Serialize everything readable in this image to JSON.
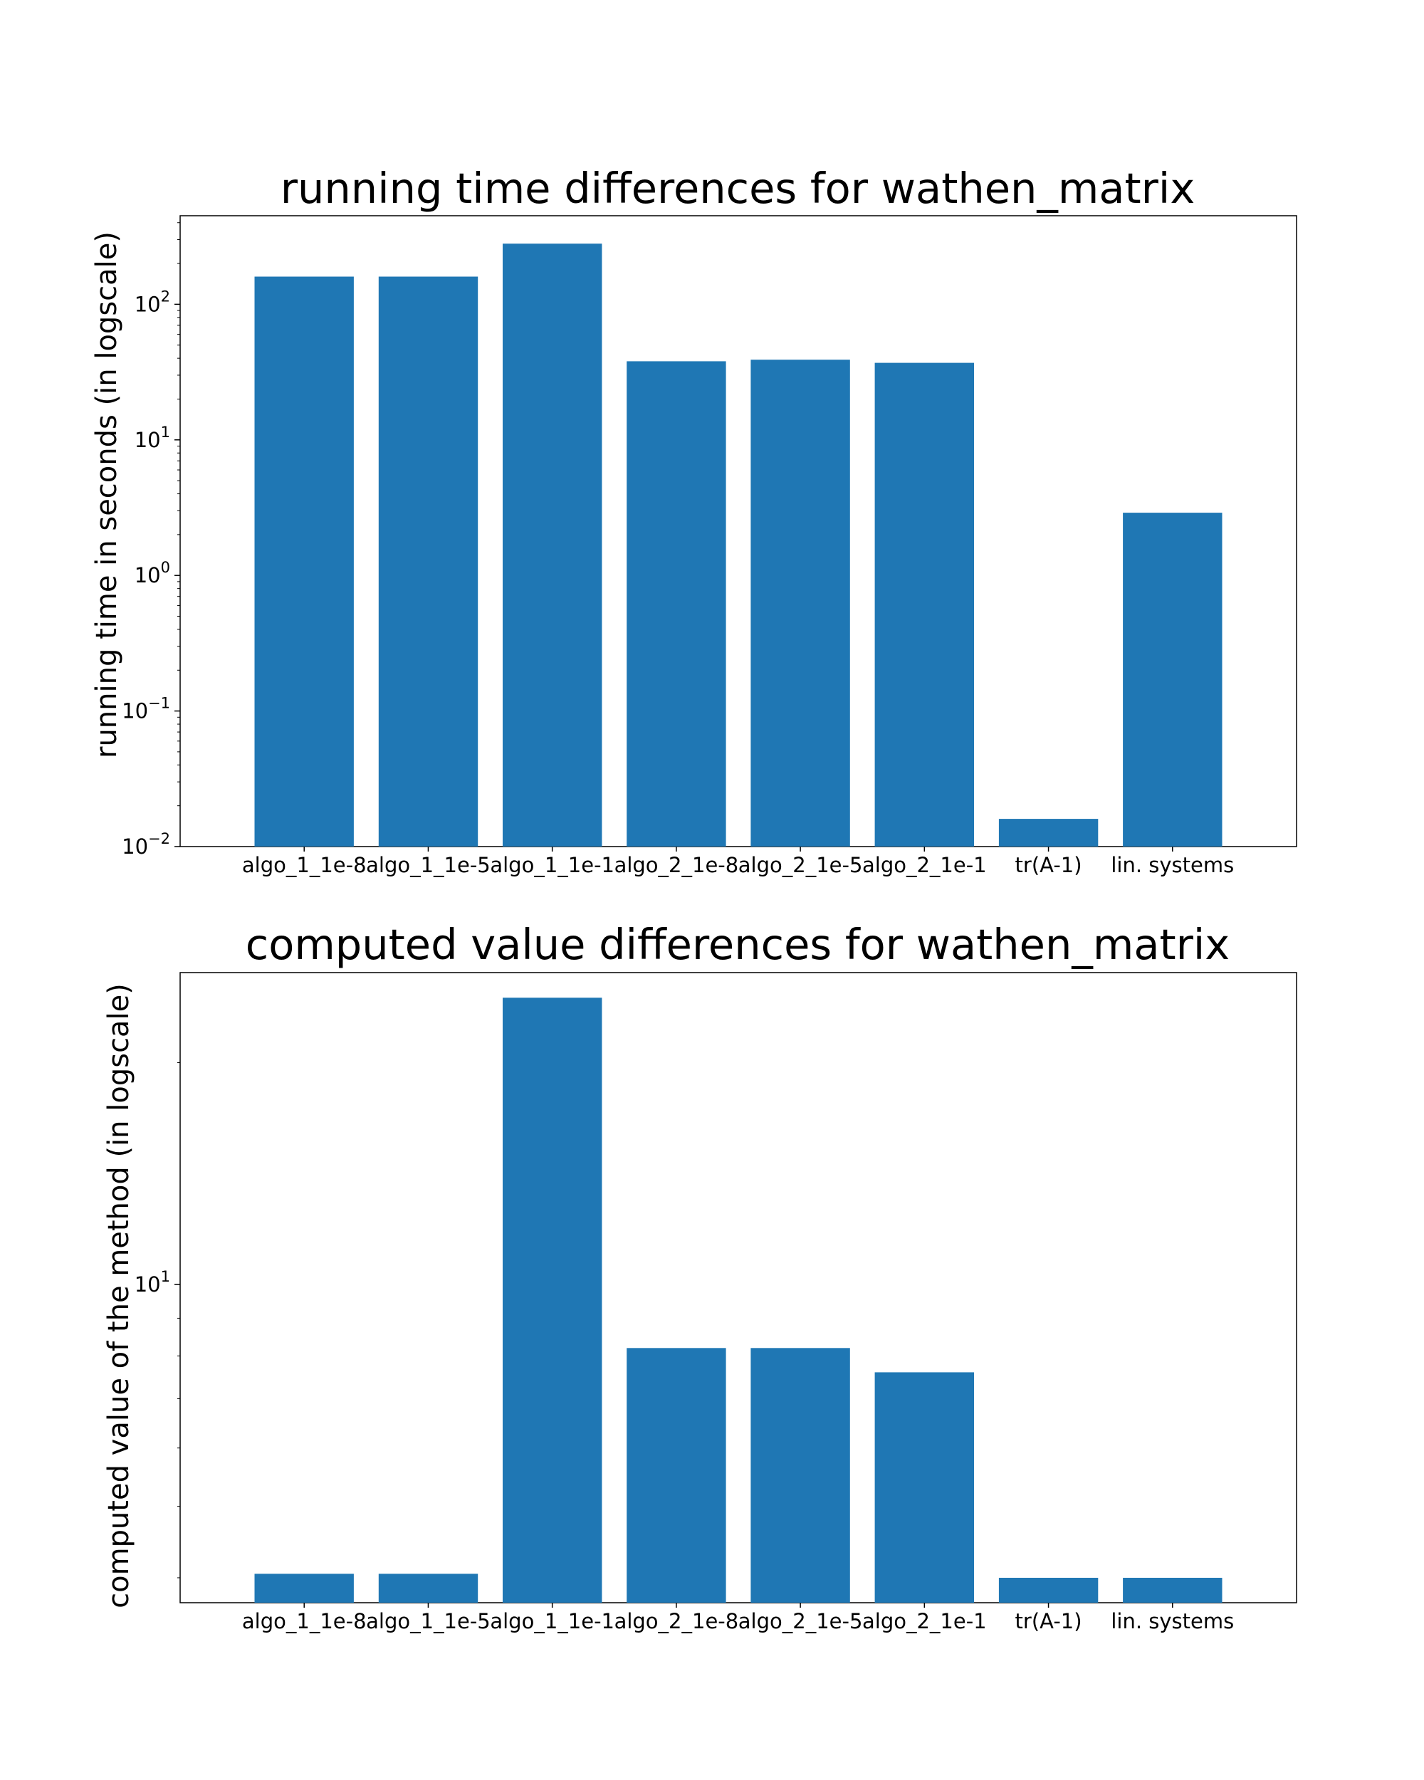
{
  "chart_data": [
    {
      "type": "bar",
      "title": "running time differences for wathen_matrix",
      "xlabel": "",
      "ylabel": "running time in seconds (in logscale)",
      "yscale": "log",
      "categories": [
        "algo_1_1e-8",
        "algo_1_1e-5",
        "algo_1_1e-1",
        "algo_2_1e-8",
        "algo_2_1e-5",
        "algo_2_1e-1",
        "tr(A-1)",
        "lin. systems"
      ],
      "values": [
        160,
        160,
        280,
        38,
        39,
        37,
        0.016,
        2.9
      ],
      "ylim": [
        0.01,
        450
      ],
      "yticks": [
        {
          "value": 0.01,
          "base": "10",
          "exp": "−2"
        },
        {
          "value": 0.1,
          "base": "10",
          "exp": "−1"
        },
        {
          "value": 1,
          "base": "10",
          "exp": "0"
        },
        {
          "value": 10,
          "base": "10",
          "exp": "1"
        },
        {
          "value": 100,
          "base": "10",
          "exp": "2"
        }
      ],
      "color": "#1f77b4",
      "grid": false
    },
    {
      "type": "bar",
      "title": "computed value differences for wathen_matrix",
      "xlabel": "",
      "ylabel": "computed value of the method (in logscale)",
      "yscale": "log",
      "categories": [
        "algo_1_1e-8",
        "algo_1_1e-5",
        "algo_1_1e-1",
        "algo_2_1e-8",
        "algo_2_1e-5",
        "algo_2_1e-1",
        "tr(A-1)",
        "lin. systems"
      ],
      "values": [
        4.05,
        4.05,
        24.5,
        8.2,
        8.2,
        7.6,
        4.0,
        4.0
      ],
      "ylim": [
        3.7,
        26.5
      ],
      "yticks": [
        {
          "value": 10,
          "base": "10",
          "exp": "1"
        }
      ],
      "color": "#1f77b4",
      "grid": false
    }
  ]
}
